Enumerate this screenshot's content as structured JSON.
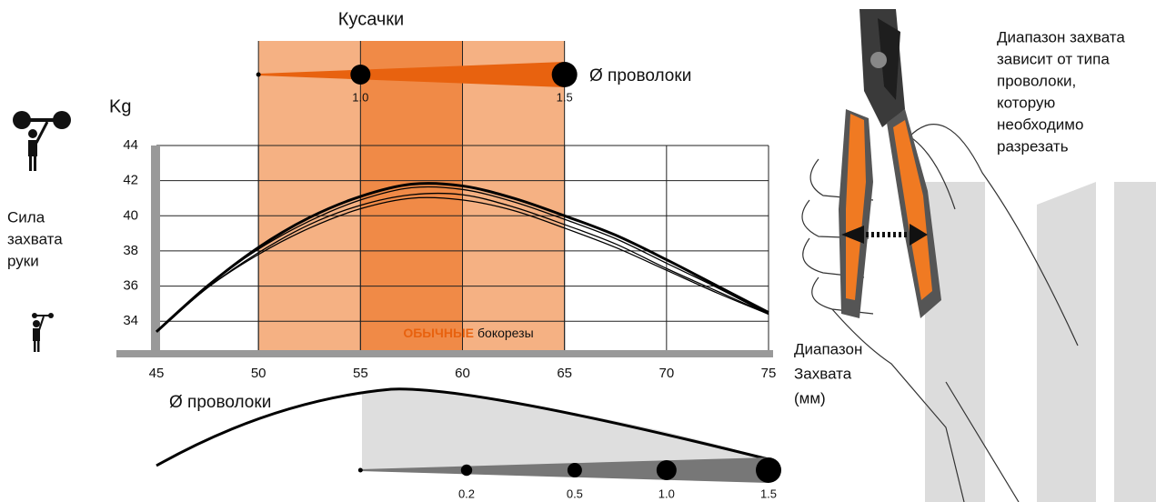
{
  "chart_data": {
    "type": "line",
    "title": "Кусачки",
    "y_label": "Kg",
    "y_description": [
      "Сила",
      "захвата",
      "руки"
    ],
    "x_label": [
      "Диапазон",
      "Захвата",
      "(мм)"
    ],
    "note": [
      "Диапазон захвата",
      "зависит от типа",
      "проволоки,",
      "которую",
      "необходимо",
      "разрезать"
    ],
    "x": [
      45,
      47.5,
      50,
      52.5,
      55,
      57.5,
      60,
      62.5,
      65,
      67.5,
      70,
      72.5,
      75
    ],
    "series": [
      {
        "color": "#000000",
        "line_width": 3,
        "values": [
          33.4,
          36.0,
          38.2,
          39.9,
          41.1,
          41.8,
          41.7,
          41.0,
          40.0,
          38.9,
          37.5,
          36.0,
          34.5
        ]
      },
      {
        "color": "#000000",
        "line_width": 1.3,
        "values": [
          33.4,
          36.0,
          38.1,
          39.7,
          40.9,
          41.6,
          41.5,
          40.8,
          39.8,
          38.7,
          37.3,
          35.9,
          34.4
        ]
      },
      {
        "color": "#000000",
        "line_width": 1.3,
        "values": [
          33.4,
          35.9,
          37.9,
          39.5,
          40.6,
          41.2,
          41.2,
          40.5,
          39.5,
          38.4,
          37.0,
          35.7,
          34.4
        ]
      },
      {
        "color": "#000000",
        "line_width": 1.3,
        "values": [
          33.4,
          35.9,
          37.8,
          39.3,
          40.4,
          41.0,
          40.9,
          40.3,
          39.3,
          38.2,
          36.9,
          35.6,
          34.4
        ]
      }
    ],
    "xlim": [
      45,
      75
    ],
    "ylim": [
      32.2,
      44
    ],
    "xticks": [
      45,
      50,
      55,
      60,
      65,
      70,
      75
    ],
    "yticks": [
      34,
      36,
      38,
      40,
      42,
      44
    ],
    "grid": true,
    "bands": [
      {
        "from": 50,
        "to": 65,
        "color": "#f5b183"
      },
      {
        "from": 55,
        "to": 60,
        "color": "#f08a47"
      }
    ],
    "band_label": {
      "highlight": "ОБЫЧНЫЕ",
      "text": "бокорезы",
      "highlight_color": "#e8620f"
    },
    "top_scale": {
      "label": "Ø проволоки",
      "start": 50,
      "color": "#e8620f",
      "markers": [
        {
          "at": 55,
          "value": 1,
          "label": "1.0"
        },
        {
          "at": 65,
          "value": 1.5,
          "label": "1.5"
        }
      ]
    },
    "bottom_scale": {
      "label": "Ø проволоки",
      "start": 55,
      "color": "#777777",
      "markers": [
        {
          "at": 60.2,
          "value": 0.2
        },
        {
          "at": 65.5,
          "value": 0.5
        },
        {
          "at": 70,
          "value": 1,
          "label": "1.0"
        },
        {
          "at": 75,
          "value": 1.5,
          "label": "1.5"
        }
      ]
    }
  }
}
